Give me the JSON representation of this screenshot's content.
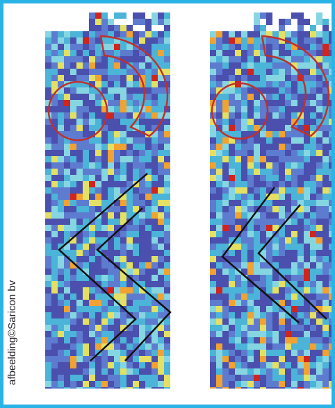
{
  "credit": "afbeelding©Saricon bv"
}
